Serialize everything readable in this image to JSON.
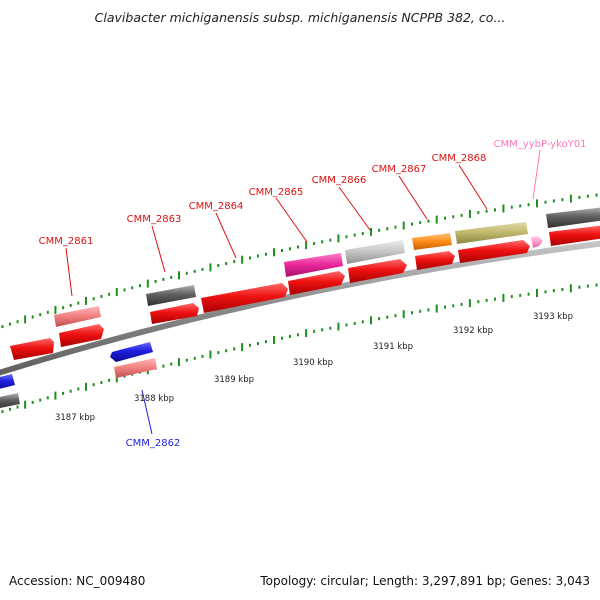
{
  "title": "Clavibacter michiganensis subsp. michiganensis NCPPB 382, co...",
  "accession_label": "Accession: NC_009480",
  "summary": "Topology: circular; Length: 3,297,891 bp; Genes: 3,043",
  "colors": {
    "forward_cds": "#ee1111",
    "reverse_cds": "#1f1fdd",
    "pink_gene": "#f08080",
    "dark_gene": "#606060",
    "magenta_gene": "#e8259a",
    "light_gray_gene": "#c4c4c4",
    "orange_gene": "#ff8c1a",
    "olive_gene": "#bdb76b",
    "rna_gene": "#ff99cc",
    "tick": "#1f8f1f",
    "backbone": "#8a8a8a"
  },
  "kbp_labels": [
    "3187 kbp",
    "3188 kbp",
    "3189 kbp",
    "3190 kbp",
    "3191 kbp",
    "3192 kbp",
    "3193 kbp"
  ],
  "gene_labels": [
    {
      "text": "CMM_2861",
      "color": "#dd1111"
    },
    {
      "text": "CMM_2862",
      "color": "#1f1fdd"
    },
    {
      "text": "CMM_2863",
      "color": "#dd1111"
    },
    {
      "text": "CMM_2864",
      "color": "#dd1111"
    },
    {
      "text": "CMM_2865",
      "color": "#dd1111"
    },
    {
      "text": "CMM_2866",
      "color": "#dd1111"
    },
    {
      "text": "CMM_2867",
      "color": "#dd1111"
    },
    {
      "text": "CMM_2868",
      "color": "#dd1111"
    },
    {
      "text": "CMM_yybP-ykoY01",
      "color": "#ff77bb"
    }
  ]
}
